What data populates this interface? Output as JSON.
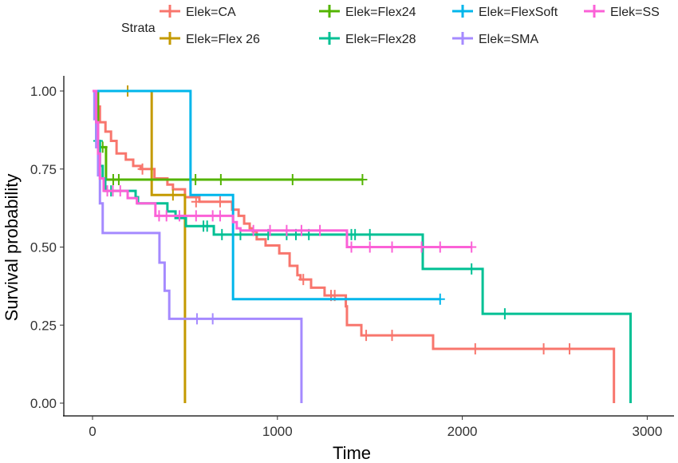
{
  "chart_data": {
    "type": "line",
    "subtype": "kaplan-meier step",
    "xlabel": "Time",
    "ylabel": "Survival probability",
    "xlim": [
      -150,
      3250
    ],
    "ylim": [
      -0.04,
      1.04
    ],
    "xticks": [
      "0",
      "1000",
      "2000",
      "3000"
    ],
    "xtick_values": [
      0,
      1000,
      2000,
      3000
    ],
    "yticks": [
      "0.00",
      "0.25",
      "0.50",
      "0.75",
      "1.00"
    ],
    "ytick_values": [
      0,
      0.25,
      0.5,
      0.75,
      1
    ],
    "legend_title": "Strata",
    "legend_position": "top",
    "series": [
      {
        "name": "Elek=CA",
        "color": "#F8766D",
        "steps": [
          [
            0,
            1
          ],
          [
            20,
            0.95
          ],
          [
            40,
            0.9
          ],
          [
            70,
            0.87
          ],
          [
            100,
            0.84
          ],
          [
            130,
            0.8
          ],
          [
            180,
            0.78
          ],
          [
            220,
            0.76
          ],
          [
            260,
            0.75
          ],
          [
            335,
            0.72
          ],
          [
            405,
            0.7
          ],
          [
            435,
            0.685
          ],
          [
            500,
            0.66
          ],
          [
            578,
            0.645
          ],
          [
            755,
            0.62
          ],
          [
            790,
            0.6
          ],
          [
            820,
            0.575
          ],
          [
            850,
            0.56
          ],
          [
            867,
            0.55
          ],
          [
            888,
            0.525
          ],
          [
            936,
            0.505
          ],
          [
            1010,
            0.48
          ],
          [
            1066,
            0.44
          ],
          [
            1108,
            0.41
          ],
          [
            1125,
            0.396
          ],
          [
            1182,
            0.37
          ],
          [
            1255,
            0.345
          ],
          [
            1370,
            0.31
          ],
          [
            1376,
            0.25
          ],
          [
            1454,
            0.217
          ],
          [
            1842,
            0.174
          ],
          [
            2820,
            0
          ]
        ],
        "censored": [
          [
            270,
            0.75
          ],
          [
            560,
            0.645
          ],
          [
            690,
            0.645
          ],
          [
            1140,
            0.396
          ],
          [
            1290,
            0.345
          ],
          [
            1310,
            0.345
          ],
          [
            1480,
            0.217
          ],
          [
            1620,
            0.217
          ],
          [
            2070,
            0.174
          ],
          [
            2440,
            0.174
          ],
          [
            2580,
            0.174
          ]
        ],
        "end": 2820
      },
      {
        "name": "Elek=Flex 26",
        "color": "#C49A00",
        "steps": [
          [
            0,
            1
          ],
          [
            320,
            0.667
          ],
          [
            500,
            0
          ]
        ],
        "censored": [
          [
            190,
            1
          ],
          [
            435,
            0.667
          ]
        ],
        "end": 500
      },
      {
        "name": "Elek=Flex24",
        "color": "#53B400",
        "steps": [
          [
            0,
            1
          ],
          [
            30,
            0.82
          ],
          [
            73,
            0.716
          ]
        ],
        "censored": [
          [
            55,
            0.82
          ],
          [
            112,
            0.716
          ],
          [
            142,
            0.716
          ],
          [
            557,
            0.716
          ],
          [
            694,
            0.716
          ],
          [
            1082,
            0.716
          ],
          [
            1460,
            0.716
          ]
        ],
        "end": 1460
      },
      {
        "name": "Elek=Flex28",
        "color": "#00C094",
        "steps": [
          [
            0,
            1
          ],
          [
            20,
            0.84
          ],
          [
            40,
            0.76
          ],
          [
            55,
            0.72
          ],
          [
            69,
            0.68
          ],
          [
            233,
            0.66
          ],
          [
            246,
            0.64
          ],
          [
            405,
            0.614
          ],
          [
            449,
            0.593
          ],
          [
            505,
            0.567
          ],
          [
            656,
            0.54
          ],
          [
            1786,
            0.43
          ],
          [
            2110,
            0.286
          ],
          [
            2910,
            0
          ]
        ],
        "censored": [
          [
            30,
            0.84
          ],
          [
            100,
            0.68
          ],
          [
            600,
            0.567
          ],
          [
            620,
            0.567
          ],
          [
            700,
            0.54
          ],
          [
            800,
            0.54
          ],
          [
            950,
            0.54
          ],
          [
            1050,
            0.54
          ],
          [
            1100,
            0.54
          ],
          [
            1170,
            0.54
          ],
          [
            1400,
            0.54
          ],
          [
            1420,
            0.54
          ],
          [
            1500,
            0.54
          ],
          [
            2050,
            0.43
          ],
          [
            2230,
            0.286
          ]
        ],
        "end": 2910
      },
      {
        "name": "Elek=FlexSoft",
        "color": "#00B6EB",
        "steps": [
          [
            0,
            1
          ],
          [
            530,
            0.667
          ],
          [
            760,
            0.333
          ]
        ],
        "censored": [
          [
            1880,
            0.333
          ]
        ],
        "end": 1880
      },
      {
        "name": "Elek=SMA",
        "color": "#A58AFF",
        "steps": [
          [
            0,
            1
          ],
          [
            10,
            0.91
          ],
          [
            20,
            0.82
          ],
          [
            30,
            0.73
          ],
          [
            40,
            0.64
          ],
          [
            55,
            0.545
          ],
          [
            362,
            0.45
          ],
          [
            390,
            0.36
          ],
          [
            415,
            0.27
          ],
          [
            1130,
            0
          ]
        ],
        "censored": [
          [
            565,
            0.27
          ],
          [
            650,
            0.27
          ]
        ],
        "end": 1130
      },
      {
        "name": "Elek=SS",
        "color": "#FB61D7",
        "steps": [
          [
            0,
            1
          ],
          [
            20,
            0.9
          ],
          [
            30,
            0.8
          ],
          [
            40,
            0.72
          ],
          [
            60,
            0.68
          ],
          [
            190,
            0.657
          ],
          [
            240,
            0.64
          ],
          [
            340,
            0.6
          ],
          [
            760,
            0.58
          ],
          [
            780,
            0.56
          ],
          [
            800,
            0.553
          ],
          [
            1376,
            0.5
          ]
        ],
        "censored": [
          [
            80,
            0.68
          ],
          [
            110,
            0.68
          ],
          [
            150,
            0.68
          ],
          [
            360,
            0.6
          ],
          [
            400,
            0.6
          ],
          [
            470,
            0.6
          ],
          [
            560,
            0.6
          ],
          [
            650,
            0.6
          ],
          [
            690,
            0.6
          ],
          [
            870,
            0.553
          ],
          [
            960,
            0.553
          ],
          [
            1050,
            0.553
          ],
          [
            1130,
            0.553
          ],
          [
            1230,
            0.553
          ],
          [
            1400,
            0.5
          ],
          [
            1500,
            0.5
          ],
          [
            1620,
            0.5
          ],
          [
            1780,
            0.5
          ],
          [
            1880,
            0.5
          ],
          [
            2050,
            0.5
          ]
        ],
        "end": 2050
      }
    ]
  }
}
